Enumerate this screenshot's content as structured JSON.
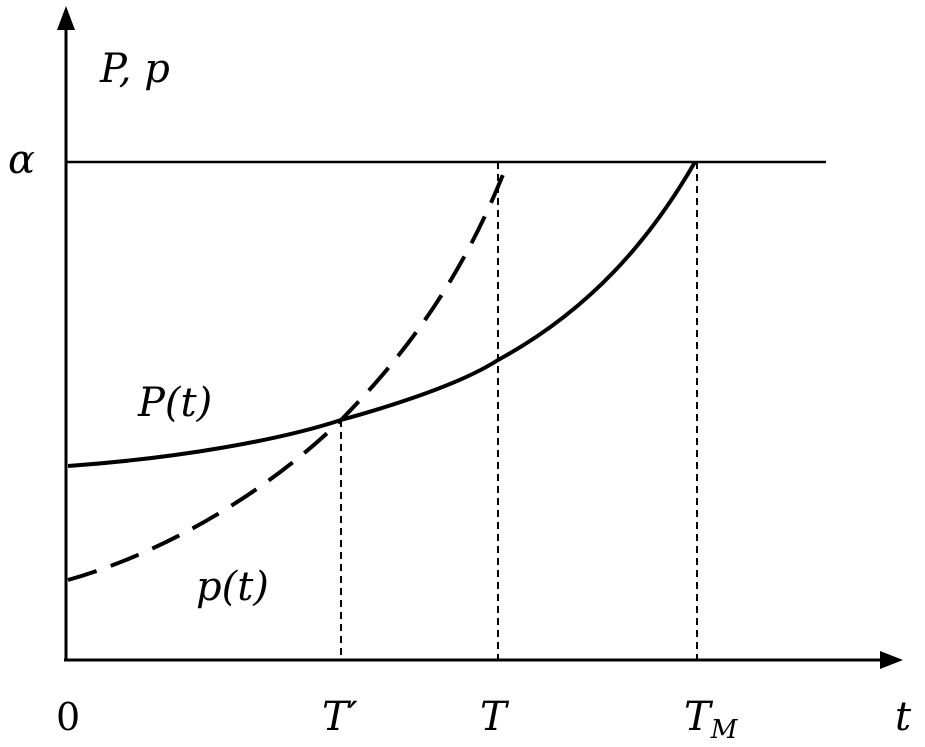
{
  "diagram": {
    "y_axis_label": "P, p",
    "x_axis_label": "t",
    "origin_label": "0",
    "threshold_label": "α",
    "curve_solid_label": "P(t)",
    "curve_dashed_label": "p(t)",
    "tick_T_prime": "T′",
    "tick_T": "T",
    "tick_TM_main": "T",
    "tick_TM_sub": "M",
    "colors": {
      "line": "#000000",
      "background": "#ffffff"
    }
  }
}
